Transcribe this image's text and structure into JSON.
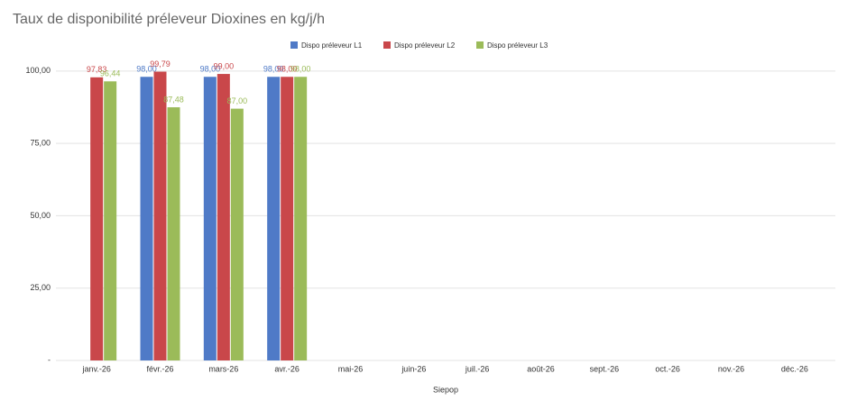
{
  "chart_data": {
    "type": "bar",
    "title": "Taux de disponibilité préleveur Dioxines en kg/j/h",
    "x_label": "Siepop",
    "categories": [
      "janv.-26",
      "févr.-26",
      "mars-26",
      "avr.-26",
      "mai-26",
      "juin-26",
      "juil.-26",
      "août-26",
      "sept.-26",
      "oct.-26",
      "nov.-26",
      "déc.-26"
    ],
    "series": [
      {
        "name": "Dispo préleveur L1",
        "color": "#4f7ac7",
        "values": [
          null,
          98.0,
          98.0,
          98.0,
          null,
          null,
          null,
          null,
          null,
          null,
          null,
          null
        ],
        "value_labels": [
          null,
          "98,00",
          "98,00",
          "98,00",
          null,
          null,
          null,
          null,
          null,
          null,
          null,
          null
        ]
      },
      {
        "name": "Dispo préleveur L2",
        "color": "#c9474a",
        "values": [
          97.83,
          99.79,
          99.0,
          98.0,
          null,
          null,
          null,
          null,
          null,
          null,
          null,
          null
        ],
        "value_labels": [
          "97,83",
          "99,79",
          "99,00",
          "98,00",
          null,
          null,
          null,
          null,
          null,
          null,
          null,
          null
        ]
      },
      {
        "name": "Dispo préleveur L3",
        "color": "#9bbb59",
        "values": [
          96.44,
          87.48,
          87.0,
          98.0,
          null,
          null,
          null,
          null,
          null,
          null,
          null,
          null
        ],
        "value_labels": [
          "96,44",
          "87,48",
          "87,00",
          "98,00",
          null,
          null,
          null,
          null,
          null,
          null,
          null,
          null
        ]
      }
    ],
    "ylim": [
      0,
      104
    ],
    "yticks": [
      {
        "value": 0,
        "label": "-"
      },
      {
        "value": 25,
        "label": "25,00"
      },
      {
        "value": 50,
        "label": "50,00"
      },
      {
        "value": 75,
        "label": "75,00"
      },
      {
        "value": 100,
        "label": "100,00"
      }
    ],
    "grid": true,
    "legend": "top"
  }
}
